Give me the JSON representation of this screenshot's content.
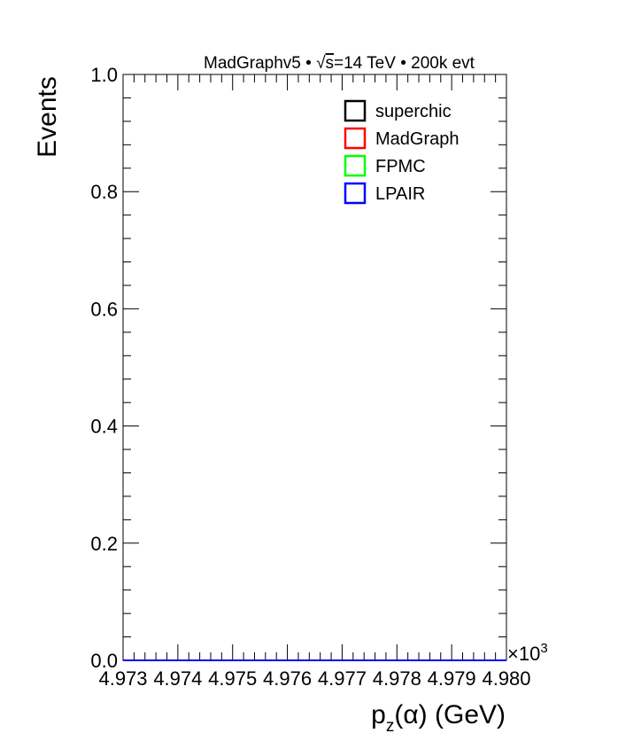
{
  "chart_data": {
    "type": "line",
    "title": "MadGraphv5 • √s=14 TeV • 200k evt",
    "title_parts": {
      "pre": "MadGraphv5 • ",
      "sqrt": "√",
      "s": "s",
      "post": "=14 TeV • 200k evt"
    },
    "xlabel": "p_z(α) (GeV)",
    "xlabel_parts": {
      "p": "p",
      "sub": "z",
      "rest": "(α) (GeV)"
    },
    "ylabel": "Events",
    "x_multiplier": {
      "base": "×10",
      "exp": "3"
    },
    "xlim": [
      4.973,
      4.98
    ],
    "ylim": [
      0,
      1
    ],
    "xticks": [
      "4.973",
      "4.974",
      "4.975",
      "4.976",
      "4.977",
      "4.978",
      "4.979",
      "4.980"
    ],
    "yticks": [
      "0.0",
      "0.2",
      "0.4",
      "0.6",
      "0.8",
      "1.0"
    ],
    "ytick_values": [
      0,
      0.2,
      0.4,
      0.6,
      0.8,
      1.0
    ],
    "grid": false,
    "legend_position": "top-right",
    "series": [
      {
        "name": "superchic",
        "color": "#000000",
        "x": [
          4.973,
          4.98
        ],
        "y": [
          0,
          0
        ]
      },
      {
        "name": "MadGraph",
        "color": "#ff0000",
        "x": [
          4.973,
          4.98
        ],
        "y": [
          0,
          0
        ]
      },
      {
        "name": "FPMC",
        "color": "#00ff00",
        "x": [
          4.973,
          4.98
        ],
        "y": [
          0,
          0
        ]
      },
      {
        "name": "LPAIR",
        "color": "#0000ff",
        "x": [
          4.973,
          4.98
        ],
        "y": [
          0,
          0
        ]
      }
    ]
  }
}
